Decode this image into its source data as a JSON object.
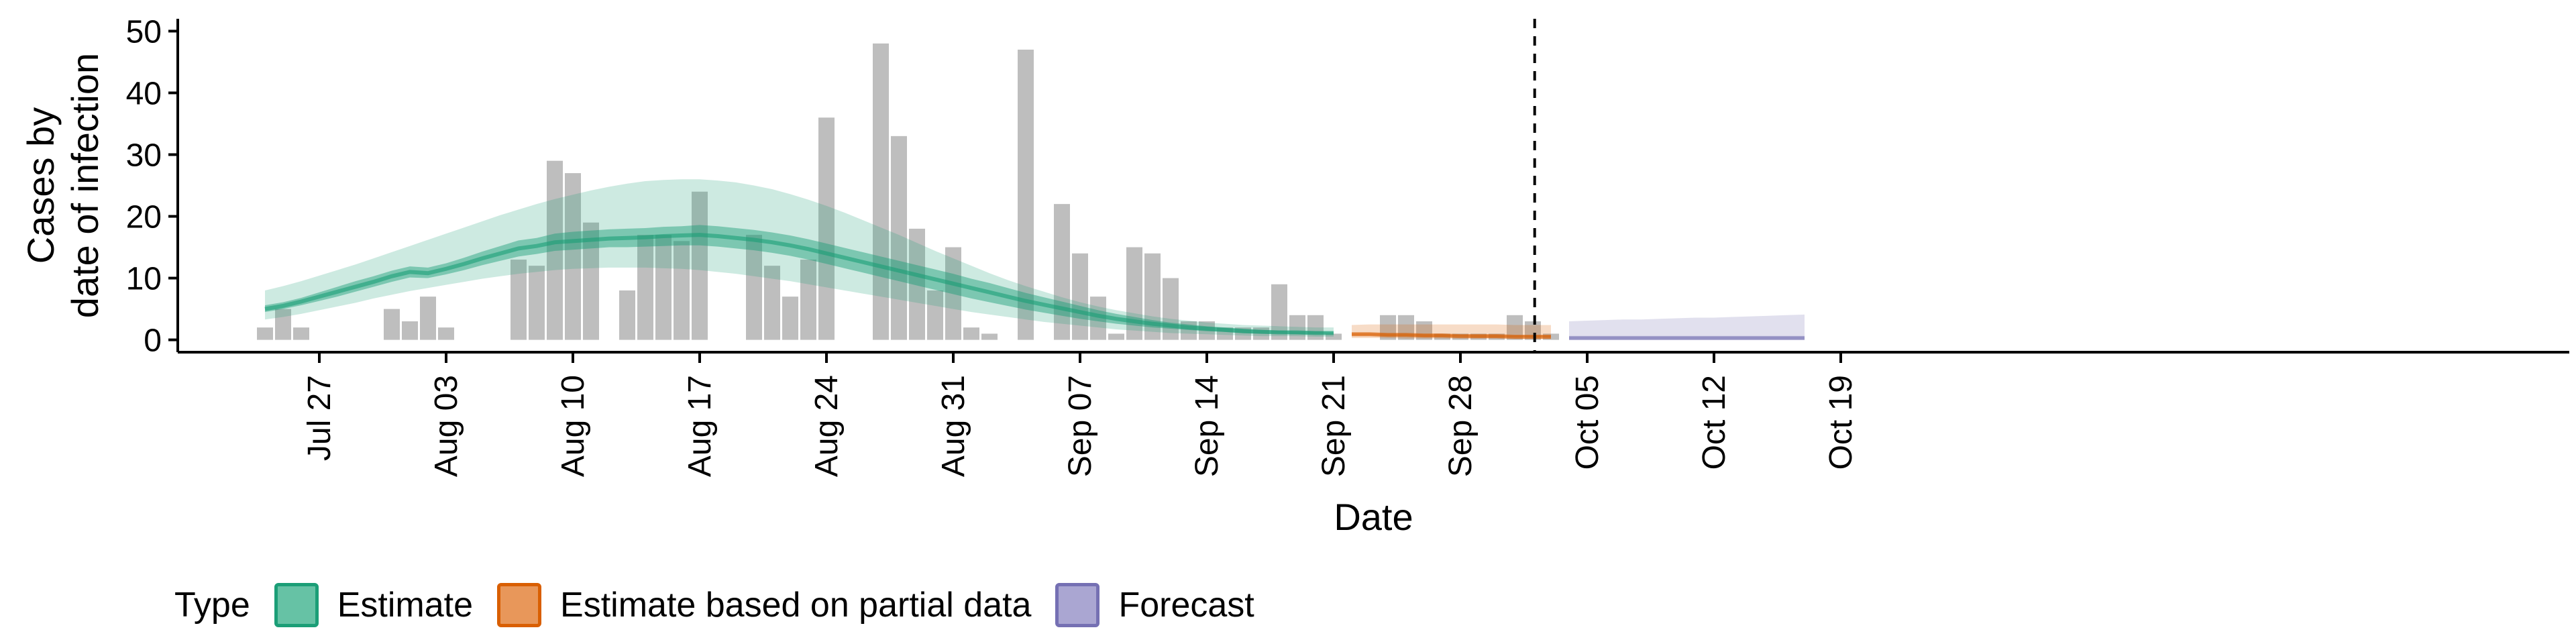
{
  "chart_data": {
    "type": "bar",
    "title": "",
    "xlabel": "Date",
    "ylabel_lines": [
      "Cases by",
      "date of infection"
    ],
    "ylim": [
      -2,
      52
    ],
    "yticks": [
      0,
      10,
      20,
      30,
      40,
      50
    ],
    "x_range": [
      "2020-07-20",
      "2020-10-19"
    ],
    "xticks": [
      {
        "date": "2020-07-27",
        "label": "Jul 27"
      },
      {
        "date": "2020-08-03",
        "label": "Aug 03"
      },
      {
        "date": "2020-08-10",
        "label": "Aug 10"
      },
      {
        "date": "2020-08-17",
        "label": "Aug 17"
      },
      {
        "date": "2020-08-24",
        "label": "Aug 24"
      },
      {
        "date": "2020-08-31",
        "label": "Aug 31"
      },
      {
        "date": "2020-09-07",
        "label": "Sep 07"
      },
      {
        "date": "2020-09-14",
        "label": "Sep 14"
      },
      {
        "date": "2020-09-21",
        "label": "Sep 21"
      },
      {
        "date": "2020-09-28",
        "label": "Sep 28"
      },
      {
        "date": "2020-10-05",
        "label": "Oct 05"
      },
      {
        "date": "2020-10-12",
        "label": "Oct 12"
      },
      {
        "date": "2020-10-19",
        "label": "Oct 19"
      }
    ],
    "bars": {
      "start_date": "2020-07-24",
      "values": [
        2,
        5,
        2,
        0,
        0,
        0,
        0,
        5,
        3,
        7,
        2,
        0,
        0,
        0,
        13,
        12,
        29,
        27,
        19,
        0,
        8,
        17,
        17,
        16,
        24,
        0,
        0,
        17,
        12,
        7,
        13,
        36,
        0,
        0,
        48,
        33,
        18,
        8,
        15,
        2,
        1,
        0,
        47,
        0,
        22,
        14,
        7,
        1,
        15,
        14,
        10,
        3,
        3,
        2,
        2,
        2,
        9,
        4,
        4,
        1,
        0,
        0,
        4,
        4,
        3,
        1,
        1,
        1,
        1,
        4,
        3,
        1
      ],
      "color": "#bebebe"
    },
    "series": [
      {
        "name": "Estimate",
        "color": "#1b9e77",
        "start_date": "2020-07-24",
        "median": [
          5.0,
          5.5,
          6.2,
          7.0,
          7.8,
          8.6,
          9.4,
          10.3,
          11.0,
          10.8,
          11.5,
          12.3,
          13.2,
          14.0,
          14.8,
          15.2,
          15.8,
          16.0,
          16.2,
          16.4,
          16.5,
          16.6,
          16.8,
          16.9,
          17.0,
          16.8,
          16.5,
          16.2,
          15.8,
          15.3,
          14.7,
          14.0,
          13.3,
          12.6,
          11.9,
          11.2,
          10.5,
          9.8,
          9.1,
          8.4,
          7.7,
          7.0,
          6.3,
          5.7,
          5.1,
          4.5,
          3.9,
          3.4,
          3.0,
          2.6,
          2.3,
          2.0,
          1.8,
          1.6,
          1.4,
          1.3,
          1.2,
          1.2,
          1.1,
          1.1
        ],
        "inner_low": [
          4.5,
          5.0,
          5.6,
          6.3,
          7.0,
          7.8,
          8.6,
          9.4,
          10.1,
          10.0,
          10.6,
          11.3,
          12.1,
          12.8,
          13.5,
          13.9,
          14.4,
          14.6,
          14.8,
          15.0,
          15.0,
          15.1,
          15.2,
          15.3,
          15.3,
          15.1,
          14.8,
          14.5,
          14.1,
          13.6,
          13.0,
          12.3,
          11.6,
          10.9,
          10.2,
          9.5,
          8.8,
          8.1,
          7.4,
          6.7,
          6.1,
          5.5,
          4.9,
          4.4,
          3.9,
          3.4,
          3.0,
          2.6,
          2.3,
          2.0,
          1.8,
          1.6,
          1.4,
          1.3,
          1.1,
          1.0,
          1.0,
          0.9,
          0.9,
          0.9
        ],
        "inner_high": [
          5.6,
          6.1,
          6.8,
          7.7,
          8.6,
          9.5,
          10.3,
          11.2,
          11.9,
          11.7,
          12.4,
          13.3,
          14.3,
          15.2,
          16.1,
          16.5,
          17.2,
          17.5,
          17.7,
          17.9,
          18.0,
          18.1,
          18.3,
          18.4,
          18.6,
          18.4,
          18.1,
          17.8,
          17.4,
          16.9,
          16.3,
          15.6,
          14.9,
          14.2,
          13.5,
          12.8,
          12.1,
          11.4,
          10.7,
          9.9,
          9.2,
          8.4,
          7.6,
          6.9,
          6.2,
          5.5,
          4.8,
          4.2,
          3.7,
          3.2,
          2.8,
          2.5,
          2.2,
          2.0,
          1.8,
          1.6,
          1.5,
          1.4,
          1.4,
          1.3
        ],
        "outer_low": [
          3.3,
          3.7,
          4.2,
          4.8,
          5.4,
          6.0,
          6.7,
          7.3,
          7.9,
          8.4,
          8.9,
          9.4,
          9.9,
          10.3,
          10.7,
          11.0,
          11.3,
          11.5,
          11.6,
          11.7,
          11.7,
          11.7,
          11.6,
          11.5,
          11.3,
          11.0,
          10.7,
          10.3,
          9.9,
          9.5,
          9.0,
          8.5,
          8.0,
          7.5,
          7.0,
          6.5,
          6.0,
          5.5,
          5.0,
          4.5,
          4.1,
          3.7,
          3.3,
          2.9,
          2.6,
          2.3,
          2.0,
          1.7,
          1.5,
          1.3,
          1.1,
          1.0,
          0.9,
          0.8,
          0.7,
          0.6,
          0.6,
          0.6,
          0.5,
          0.5
        ],
        "outer_high": [
          8.0,
          8.7,
          9.5,
          10.4,
          11.3,
          12.2,
          13.2,
          14.2,
          15.2,
          16.2,
          17.2,
          18.2,
          19.2,
          20.2,
          21.1,
          22.0,
          22.8,
          23.5,
          24.2,
          24.8,
          25.3,
          25.7,
          25.9,
          26.0,
          26.0,
          25.8,
          25.5,
          25.0,
          24.4,
          23.6,
          22.7,
          21.7,
          20.6,
          19.4,
          18.2,
          17.0,
          15.7,
          14.4,
          13.2,
          12.0,
          10.8,
          9.7,
          8.7,
          7.8,
          6.9,
          6.1,
          5.4,
          4.8,
          4.3,
          3.8,
          3.4,
          3.1,
          2.8,
          2.6,
          2.4,
          2.3,
          2.2,
          2.1,
          2.0,
          2.0
        ]
      },
      {
        "name": "Estimate based on partial data",
        "color": "#d95f02",
        "start_date": "2020-09-22",
        "median": [
          0.9,
          0.9,
          0.8,
          0.8,
          0.7,
          0.7,
          0.6,
          0.6,
          0.6,
          0.5,
          0.5,
          0.5
        ],
        "inner_low": [
          0.7,
          0.7,
          0.6,
          0.6,
          0.5,
          0.5,
          0.5,
          0.4,
          0.4,
          0.4,
          0.4,
          0.4
        ],
        "inner_high": [
          1.1,
          1.1,
          1.0,
          1.0,
          0.9,
          0.9,
          0.8,
          0.8,
          0.8,
          0.7,
          0.7,
          0.7
        ],
        "outer_low": [
          0.3,
          0.3,
          0.3,
          0.2,
          0.2,
          0.2,
          0.2,
          0.2,
          0.2,
          0.1,
          0.1,
          0.1
        ],
        "outer_high": [
          2.4,
          2.5,
          2.5,
          2.5,
          2.5,
          2.5,
          2.5,
          2.5,
          2.5,
          2.4,
          2.4,
          2.4
        ]
      },
      {
        "name": "Forecast",
        "color": "#7570b3",
        "start_date": "2020-10-04",
        "median": [
          0.3,
          0.3,
          0.3,
          0.3,
          0.3,
          0.3,
          0.3,
          0.3,
          0.3,
          0.3,
          0.3,
          0.3,
          0.3,
          0.3
        ],
        "inner_low": [
          0.2,
          0.2,
          0.2,
          0.2,
          0.2,
          0.2,
          0.2,
          0.2,
          0.2,
          0.2,
          0.2,
          0.2,
          0.2,
          0.2
        ],
        "inner_high": [
          0.4,
          0.4,
          0.4,
          0.4,
          0.4,
          0.4,
          0.4,
          0.4,
          0.4,
          0.4,
          0.4,
          0.4,
          0.4,
          0.4
        ],
        "outer_low": [
          0.0,
          0.0,
          0.0,
          0.0,
          0.0,
          0.0,
          0.0,
          0.0,
          0.0,
          0.0,
          0.0,
          0.0,
          0.0,
          0.0
        ],
        "outer_high": [
          3.0,
          3.1,
          3.2,
          3.3,
          3.3,
          3.4,
          3.5,
          3.6,
          3.6,
          3.7,
          3.8,
          3.9,
          4.0,
          4.1
        ]
      }
    ],
    "vline_date": "2020-10-02",
    "grid": false,
    "legend": {
      "position": "bottom",
      "title": "Type",
      "items": [
        {
          "label": "Estimate",
          "fill": "#66c2a5",
          "border": "#1b9e77"
        },
        {
          "label": "Estimate based on partial data",
          "fill": "#e8975a",
          "border": "#d95f02"
        },
        {
          "label": "Forecast",
          "fill": "#aaa6d2",
          "border": "#7570b3"
        }
      ]
    }
  }
}
